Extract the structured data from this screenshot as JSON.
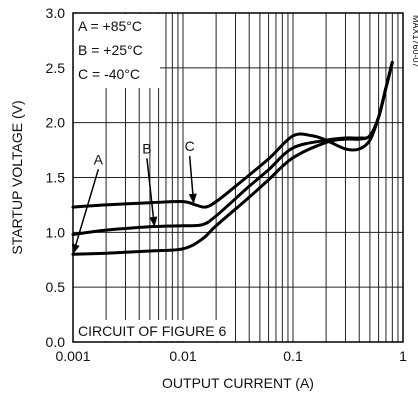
{
  "chart_data": {
    "type": "line",
    "title": "",
    "xlabel": "OUTPUT CURRENT (A)",
    "ylabel": "STARTUP VOLTAGE (V)",
    "xscale": "log",
    "xlim": [
      0.001,
      1
    ],
    "ylim": [
      0.0,
      3.0
    ],
    "grid": true,
    "x_tick_labels": [
      "0.001",
      "0.01",
      "0.1",
      "1"
    ],
    "y_tick_labels": [
      "0.0",
      "0.5",
      "1.0",
      "1.5",
      "2.0",
      "2.5",
      "3.0"
    ],
    "legend_lines": [
      "A = +85°C",
      "B = +25°C",
      "C = -40°C"
    ],
    "legend_placement": "top-left",
    "note": "CIRCUIT OF FIGURE 6",
    "figure_id": "MAX1760-07",
    "series": [
      {
        "label": "A",
        "x": [
          0.001,
          0.002,
          0.005,
          0.01,
          0.015,
          0.02,
          0.04,
          0.06,
          0.1,
          0.2,
          0.3,
          0.4,
          0.5,
          0.6,
          0.7,
          0.8
        ],
        "y": [
          0.8,
          0.81,
          0.83,
          0.85,
          0.94,
          1.06,
          1.32,
          1.48,
          1.68,
          1.82,
          1.85,
          1.85,
          1.88,
          2.05,
          2.32,
          2.55
        ]
      },
      {
        "label": "B",
        "x": [
          0.001,
          0.002,
          0.005,
          0.01,
          0.015,
          0.02,
          0.04,
          0.06,
          0.1,
          0.2,
          0.3,
          0.4,
          0.5,
          0.6,
          0.7,
          0.8
        ],
        "y": [
          0.98,
          1.02,
          1.05,
          1.06,
          1.07,
          1.15,
          1.42,
          1.57,
          1.77,
          1.84,
          1.86,
          1.86,
          1.88,
          2.05,
          2.32,
          2.55
        ]
      },
      {
        "label": "C",
        "x": [
          0.001,
          0.002,
          0.005,
          0.01,
          0.013,
          0.016,
          0.02,
          0.03,
          0.06,
          0.1,
          0.15,
          0.2,
          0.3,
          0.4,
          0.5,
          0.6,
          0.7,
          0.8
        ],
        "y": [
          1.23,
          1.25,
          1.27,
          1.28,
          1.25,
          1.23,
          1.28,
          1.42,
          1.67,
          1.88,
          1.88,
          1.84,
          1.76,
          1.76,
          1.84,
          2.05,
          2.32,
          2.55
        ]
      }
    ],
    "curve_labels": [
      {
        "text": "A",
        "tip": [
          0.001,
          0.8
        ],
        "label_x": 0.0017,
        "label_y": 1.62
      },
      {
        "text": "B",
        "tip": [
          0.0055,
          1.05
        ],
        "label_x": 0.0047,
        "label_y": 1.72
      },
      {
        "text": "C",
        "tip": [
          0.0125,
          1.26
        ],
        "label_x": 0.0115,
        "label_y": 1.74
      }
    ]
  }
}
